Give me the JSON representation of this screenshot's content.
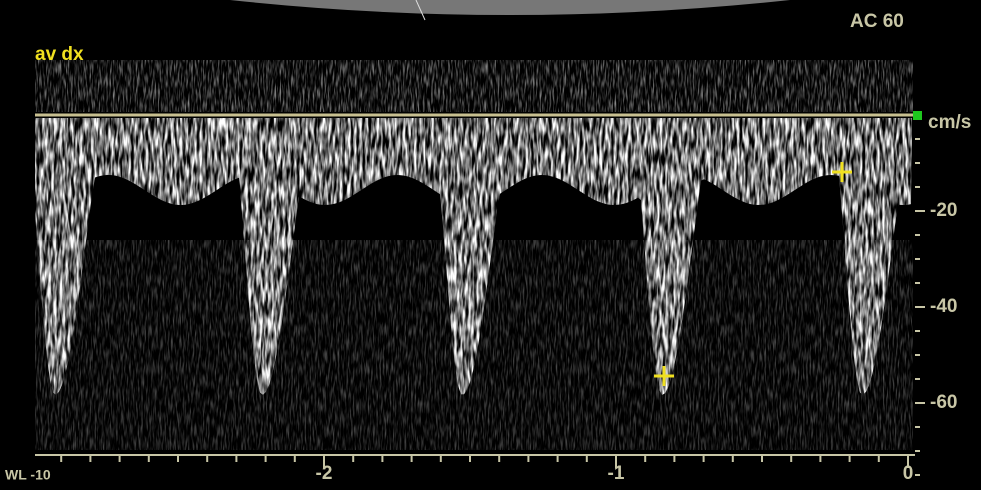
{
  "header": {
    "label": "av dx",
    "preset": "AC 60"
  },
  "axis": {
    "unit": "cm/s",
    "yticks": [
      "-20",
      "-40",
      "-60"
    ],
    "xticks": [
      "-2",
      "-1",
      "0"
    ]
  },
  "footer": {
    "level": "WL -10"
  }
}
